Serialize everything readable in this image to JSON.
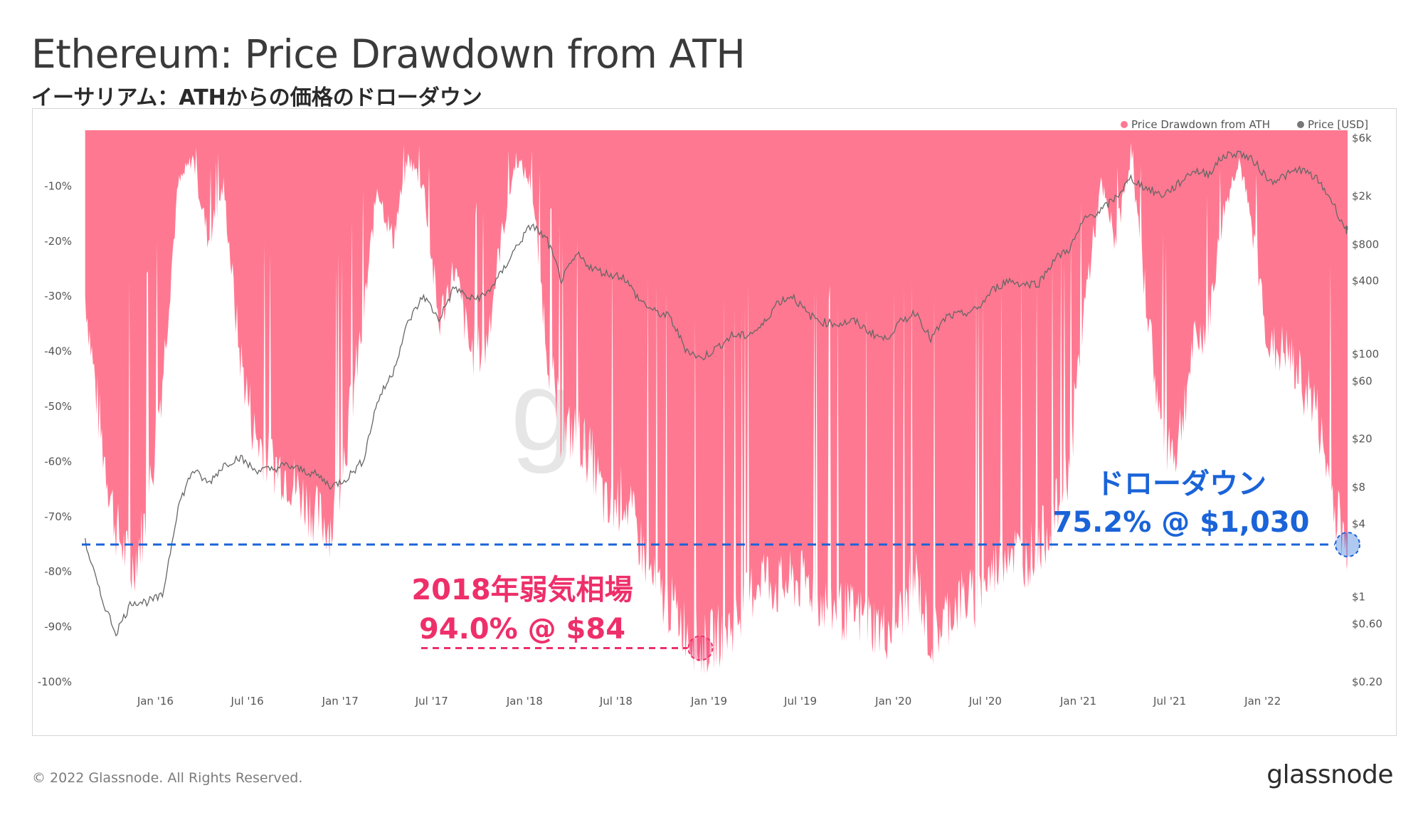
{
  "header": {
    "title": "Ethereum: Price Drawdown from ATH",
    "subtitle": "イーサリアム：ATHからの価格のドローダウン"
  },
  "footer": {
    "copyright": "© 2022 Glassnode. All Rights Reserved.",
    "brand": "glassnode"
  },
  "watermark": "gl",
  "chart_data": {
    "type": "area",
    "legend": [
      {
        "label": "Price Drawdown from ATH",
        "color": "#ff7891"
      },
      {
        "label": "Price [USD]",
        "color": "#777777"
      }
    ],
    "legend_position": "top-right",
    "grid": false,
    "x_ticks": [
      "Jan '16",
      "Jul '16",
      "Jan '17",
      "Jul '17",
      "Jan '18",
      "Jul '18",
      "Jan '19",
      "Jul '19",
      "Jan '20",
      "Jul '20",
      "Jan '21",
      "Jul '21",
      "Jan '22"
    ],
    "y_left": {
      "label": "Price Drawdown from ATH",
      "ticks": [
        "-10%",
        "-20%",
        "-30%",
        "-40%",
        "-50%",
        "-60%",
        "-70%",
        "-80%",
        "-90%",
        "-100%"
      ],
      "range": [
        -100,
        0
      ]
    },
    "y_right": {
      "label": "Price [USD]",
      "scale": "log",
      "ticks": [
        "$6k",
        "$2k",
        "$800",
        "$400",
        "$100",
        "$60",
        "$20",
        "$8",
        "$4",
        "$1",
        "$0.60",
        "$0.20"
      ],
      "range": [
        0.2,
        6000
      ]
    },
    "series": [
      {
        "name": "Price Drawdown from ATH",
        "unit": "%",
        "x": [
          "2015-08",
          "2015-09",
          "2015-10",
          "2015-11",
          "2015-12",
          "2016-01",
          "2016-02",
          "2016-03",
          "2016-04",
          "2016-05",
          "2016-06",
          "2016-07",
          "2016-08",
          "2016-09",
          "2016-10",
          "2016-11",
          "2016-12",
          "2017-01",
          "2017-02",
          "2017-03",
          "2017-04",
          "2017-05",
          "2017-06",
          "2017-07",
          "2017-08",
          "2017-09",
          "2017-10",
          "2017-11",
          "2017-12",
          "2018-01",
          "2018-02",
          "2018-03",
          "2018-04",
          "2018-05",
          "2018-06",
          "2018-07",
          "2018-08",
          "2018-09",
          "2018-10",
          "2018-11",
          "2018-12",
          "2019-01",
          "2019-02",
          "2019-03",
          "2019-04",
          "2019-05",
          "2019-06",
          "2019-07",
          "2019-08",
          "2019-09",
          "2019-10",
          "2019-11",
          "2019-12",
          "2020-01",
          "2020-02",
          "2020-03",
          "2020-04",
          "2020-05",
          "2020-06",
          "2020-07",
          "2020-08",
          "2020-09",
          "2020-10",
          "2020-11",
          "2020-12",
          "2021-01",
          "2021-02",
          "2021-03",
          "2021-04",
          "2021-05",
          "2021-06",
          "2021-07",
          "2021-08",
          "2021-09",
          "2021-10",
          "2021-11",
          "2021-12",
          "2022-01",
          "2022-02",
          "2022-03",
          "2022-04",
          "2022-05",
          "2022-06"
        ],
        "values": [
          -30,
          -55,
          -72,
          -80,
          -70,
          -45,
          -10,
          -5,
          -20,
          -10,
          -40,
          -55,
          -60,
          -62,
          -66,
          -70,
          -72,
          -55,
          -35,
          -10,
          -20,
          -5,
          -10,
          -35,
          -25,
          -40,
          -40,
          -20,
          -5,
          -10,
          -40,
          -55,
          -55,
          -60,
          -70,
          -66,
          -74,
          -83,
          -86,
          -90,
          -94,
          -92,
          -90,
          -86,
          -80,
          -83,
          -82,
          -82,
          -86,
          -87,
          -88,
          -89,
          -91,
          -88,
          -81,
          -93,
          -88,
          -85,
          -85,
          -80,
          -75,
          -78,
          -75,
          -70,
          -60,
          -30,
          -10,
          -20,
          -5,
          -30,
          -55,
          -58,
          -40,
          -35,
          -15,
          -5,
          -20,
          -40,
          -40,
          -45,
          -50,
          -65,
          -75.2
        ]
      },
      {
        "name": "Price [USD]",
        "unit": "USD",
        "x": [
          "2015-08",
          "2015-09",
          "2015-10",
          "2015-11",
          "2015-12",
          "2016-01",
          "2016-02",
          "2016-03",
          "2016-04",
          "2016-05",
          "2016-06",
          "2016-07",
          "2016-08",
          "2016-09",
          "2016-10",
          "2016-11",
          "2016-12",
          "2017-01",
          "2017-02",
          "2017-03",
          "2017-04",
          "2017-05",
          "2017-06",
          "2017-07",
          "2017-08",
          "2017-09",
          "2017-10",
          "2017-11",
          "2017-12",
          "2018-01",
          "2018-02",
          "2018-03",
          "2018-04",
          "2018-05",
          "2018-06",
          "2018-07",
          "2018-08",
          "2018-09",
          "2018-10",
          "2018-11",
          "2018-12",
          "2019-01",
          "2019-02",
          "2019-03",
          "2019-04",
          "2019-05",
          "2019-06",
          "2019-07",
          "2019-08",
          "2019-09",
          "2019-10",
          "2019-11",
          "2019-12",
          "2020-01",
          "2020-02",
          "2020-03",
          "2020-04",
          "2020-05",
          "2020-06",
          "2020-07",
          "2020-08",
          "2020-09",
          "2020-10",
          "2020-11",
          "2020-12",
          "2021-01",
          "2021-02",
          "2021-03",
          "2021-04",
          "2021-05",
          "2021-06",
          "2021-07",
          "2021-08",
          "2021-09",
          "2021-10",
          "2021-11",
          "2021-12",
          "2022-01",
          "2022-02",
          "2022-03",
          "2022-04",
          "2022-05",
          "2022-06"
        ],
        "values": [
          2.8,
          1.0,
          0.5,
          0.9,
          0.9,
          1.0,
          5.5,
          11,
          8.5,
          12,
          14,
          11,
          11,
          12,
          11,
          10,
          8,
          9.5,
          13,
          40,
          70,
          180,
          300,
          190,
          350,
          280,
          300,
          450,
          750,
          1150,
          850,
          400,
          650,
          500,
          450,
          430,
          280,
          220,
          200,
          110,
          90,
          110,
          140,
          140,
          165,
          260,
          300,
          210,
          180,
          175,
          185,
          150,
          130,
          180,
          220,
          130,
          200,
          210,
          230,
          330,
          400,
          370,
          380,
          600,
          730,
          1300,
          1500,
          1900,
          2750,
          2300,
          2000,
          2400,
          3200,
          3000,
          4200,
          4500,
          3800,
          2600,
          2900,
          3300,
          2800,
          1900,
          1030
        ]
      }
    ],
    "annotations": [
      {
        "line1": "2018年弱気相場",
        "line2": "94.0% @ $84",
        "drawdown": -94.0,
        "price": 84,
        "date": "2018-12",
        "color": "#ee2f6a"
      },
      {
        "line1": "ドローダウン",
        "line2": "75.2% @ $1,030",
        "drawdown": -75.2,
        "price": 1030,
        "date": "2022-06",
        "color": "#1a63d8"
      }
    ]
  }
}
